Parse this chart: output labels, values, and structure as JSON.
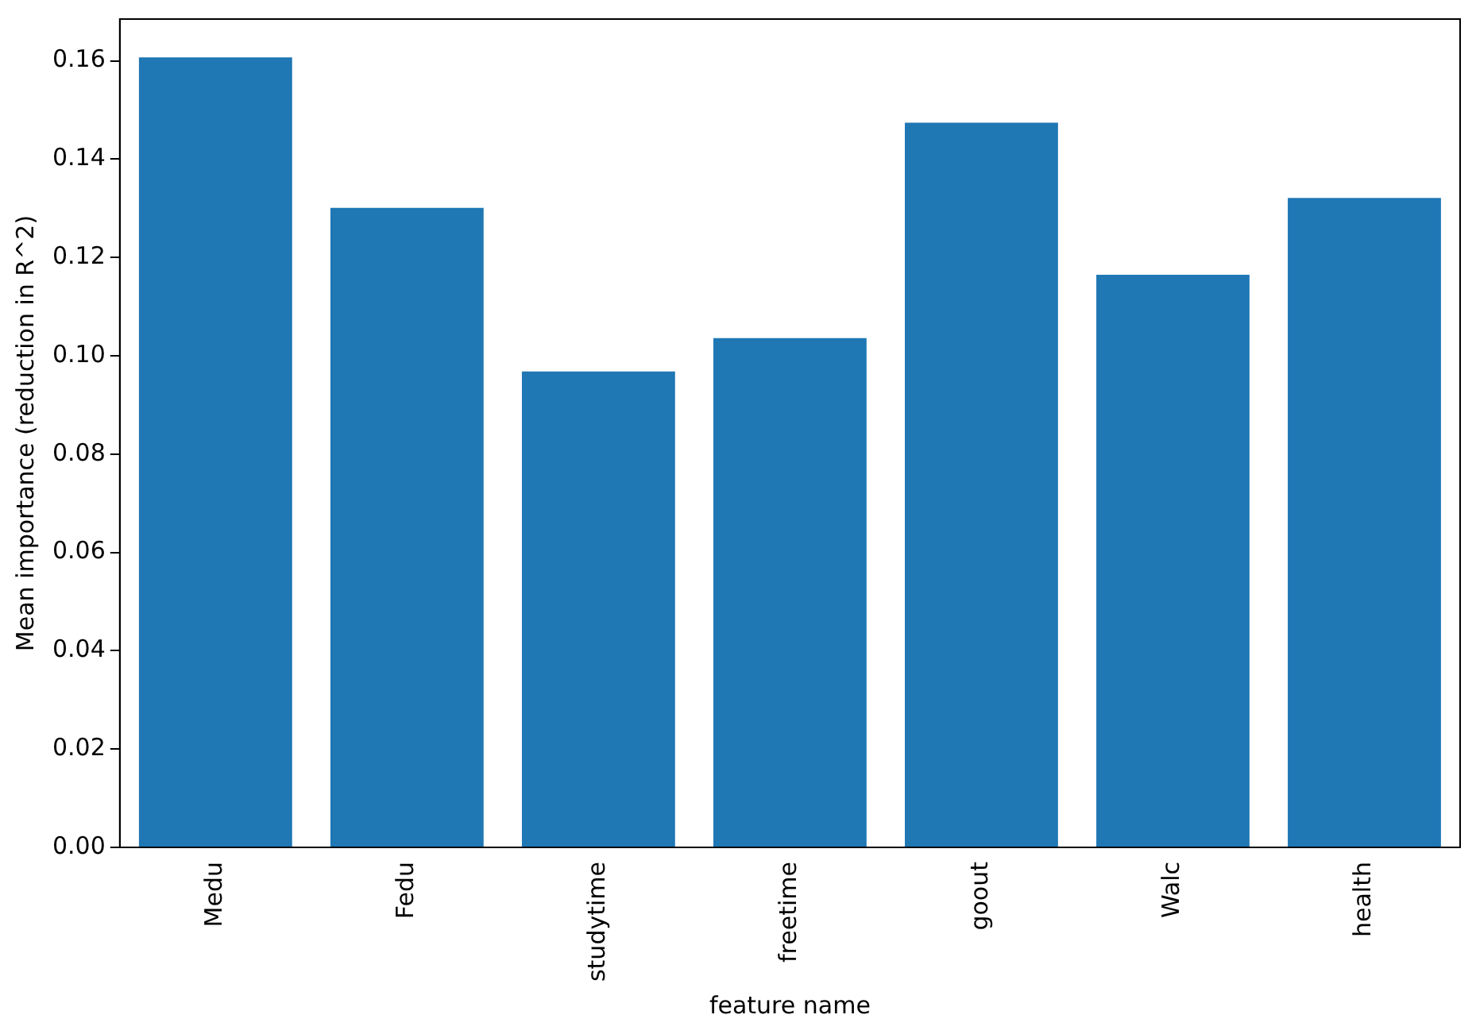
{
  "chart_data": {
    "type": "bar",
    "xlabel": "feature name",
    "ylabel": "Mean importance (reduction in R^2)",
    "categories": [
      "Medu",
      "Fedu",
      "studytime",
      "freetime",
      "goout",
      "Walc",
      "health"
    ],
    "values": [
      0.1607,
      0.1301,
      0.0968,
      0.1036,
      0.1474,
      0.1165,
      0.1321
    ],
    "color": "#1f77b4",
    "ylim": [
      0,
      0.1685
    ],
    "yticks": [
      {
        "value": 0,
        "label": "0.00"
      },
      {
        "value": 0.02,
        "label": "0.02"
      },
      {
        "value": 0.04,
        "label": "0.04"
      },
      {
        "value": 0.06,
        "label": "0.06"
      },
      {
        "value": 0.08,
        "label": "0.08"
      },
      {
        "value": 0.1,
        "label": "0.10"
      },
      {
        "value": 0.12,
        "label": "0.12"
      },
      {
        "value": 0.14,
        "label": "0.14"
      },
      {
        "value": 0.16,
        "label": "0.16"
      }
    ],
    "grid": false,
    "legend": false
  }
}
